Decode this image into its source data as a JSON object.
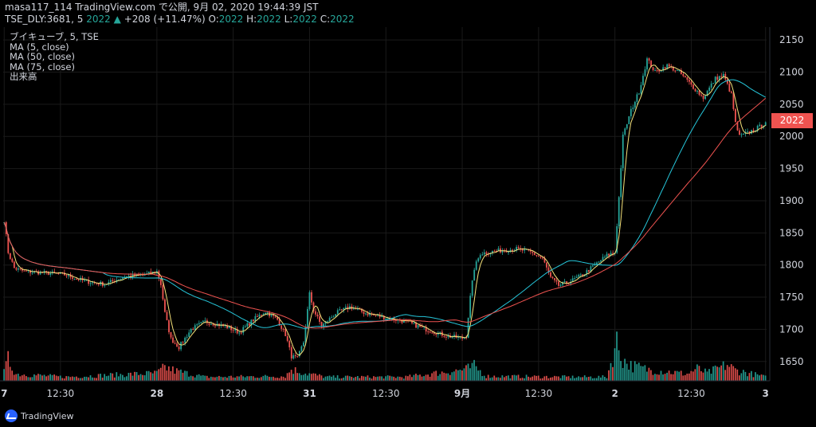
{
  "header": {
    "line1": "masa117_114 TradingView.com で公開, 9月 02, 2020 19:44:39 JST",
    "line2_prefix": "TSE_DLY:3681, 5",
    "last": "2022",
    "arrow": "▲",
    "change": "+208 (+11.47%)",
    "o_label": "O:",
    "o": "2022",
    "h_label": "H:",
    "h": "2022",
    "l_label": "L:",
    "l": "2022",
    "c_label": "C:",
    "c": "2022"
  },
  "legend": {
    "symbol": "ブイキューブ, 5, TSE",
    "ma5": "MA (5, close)",
    "ma50": "MA (50, close)",
    "ma75": "MA (75, close)",
    "volume": "出来高"
  },
  "price_tag": "2022",
  "brand": {
    "name": "TradingView",
    "logo_icon": "tradingview-logo-icon"
  },
  "colors": {
    "up": "#26a69a",
    "down": "#ef5350",
    "ma5": "#f6e27a",
    "ma50": "#26c6da",
    "ma75": "#ef5350",
    "grid": "#1a1a1a",
    "axis_text": "#d1d4dc"
  },
  "chart_data": {
    "type": "candlestick",
    "title": "ブイキューブ, 5, TSE",
    "interval": "5",
    "xlabel": "",
    "ylabel": "",
    "ylim": [
      1620,
      2170
    ],
    "y_ticks": [
      1650,
      1700,
      1750,
      1800,
      1850,
      1900,
      1950,
      2000,
      2050,
      2100,
      2150
    ],
    "x_tick_labels": [
      "7",
      "12:30",
      "28",
      "12:30",
      "31",
      "12:30",
      "9月",
      "12:30",
      "2",
      "12:30",
      "3"
    ],
    "last_price": 2022,
    "sessions": [
      "Aug 27",
      "Aug 28",
      "Aug 31",
      "Sep 1",
      "Sep 2"
    ],
    "close_path": [
      [
        0,
        1870
      ],
      [
        2,
        1820
      ],
      [
        5,
        1795
      ],
      [
        10,
        1790
      ],
      [
        20,
        1788
      ],
      [
        30,
        1785
      ],
      [
        40,
        1775
      ],
      [
        50,
        1770
      ],
      [
        60,
        1782
      ],
      [
        70,
        1785
      ],
      [
        76,
        1790
      ],
      [
        78,
        1770
      ],
      [
        80,
        1725
      ],
      [
        83,
        1685
      ],
      [
        87,
        1672
      ],
      [
        93,
        1700
      ],
      [
        100,
        1712
      ],
      [
        110,
        1705
      ],
      [
        117,
        1695
      ],
      [
        124,
        1715
      ],
      [
        130,
        1728
      ],
      [
        136,
        1715
      ],
      [
        140,
        1692
      ],
      [
        143,
        1658
      ],
      [
        146,
        1655
      ],
      [
        149,
        1680
      ],
      [
        152,
        1755
      ],
      [
        154,
        1730
      ],
      [
        158,
        1705
      ],
      [
        165,
        1725
      ],
      [
        172,
        1735
      ],
      [
        180,
        1725
      ],
      [
        190,
        1718
      ],
      [
        200,
        1712
      ],
      [
        210,
        1700
      ],
      [
        220,
        1690
      ],
      [
        228,
        1686
      ],
      [
        230,
        1690
      ],
      [
        232,
        1750
      ],
      [
        234,
        1795
      ],
      [
        237,
        1818
      ],
      [
        245,
        1822
      ],
      [
        255,
        1825
      ],
      [
        262,
        1820
      ],
      [
        268,
        1810
      ],
      [
        272,
        1780
      ],
      [
        276,
        1768
      ],
      [
        282,
        1775
      ],
      [
        288,
        1785
      ],
      [
        296,
        1805
      ],
      [
        300,
        1815
      ],
      [
        304,
        1820
      ],
      [
        306,
        1905
      ],
      [
        308,
        2000
      ],
      [
        312,
        2040
      ],
      [
        316,
        2070
      ],
      [
        320,
        2120
      ],
      [
        324,
        2100
      ],
      [
        330,
        2110
      ],
      [
        336,
        2100
      ],
      [
        342,
        2080
      ],
      [
        348,
        2060
      ],
      [
        354,
        2090
      ],
      [
        358,
        2095
      ],
      [
        362,
        2065
      ],
      [
        364,
        2020
      ],
      [
        366,
        2000
      ],
      [
        370,
        2005
      ],
      [
        376,
        2015
      ],
      [
        379,
        2022
      ]
    ],
    "moving_averages": [
      {
        "name": "MA (5, close)",
        "period": 5
      },
      {
        "name": "MA (50, close)",
        "period": 50
      },
      {
        "name": "MA (75, close)",
        "period": 75
      }
    ],
    "volume_path": [
      [
        0,
        0.22
      ],
      [
        2,
        0.55
      ],
      [
        6,
        0.18
      ],
      [
        30,
        0.1
      ],
      [
        76,
        0.2
      ],
      [
        80,
        0.35
      ],
      [
        86,
        0.25
      ],
      [
        100,
        0.1
      ],
      [
        140,
        0.12
      ],
      [
        143,
        0.3
      ],
      [
        150,
        0.2
      ],
      [
        160,
        0.1
      ],
      [
        200,
        0.1
      ],
      [
        230,
        0.3
      ],
      [
        234,
        0.38
      ],
      [
        240,
        0.12
      ],
      [
        280,
        0.1
      ],
      [
        300,
        0.1
      ],
      [
        305,
        1.0
      ],
      [
        308,
        0.55
      ],
      [
        312,
        0.4
      ],
      [
        320,
        0.3
      ],
      [
        340,
        0.18
      ],
      [
        345,
        0.32
      ],
      [
        350,
        0.2
      ],
      [
        360,
        0.42
      ],
      [
        364,
        0.28
      ],
      [
        379,
        0.1
      ]
    ]
  }
}
